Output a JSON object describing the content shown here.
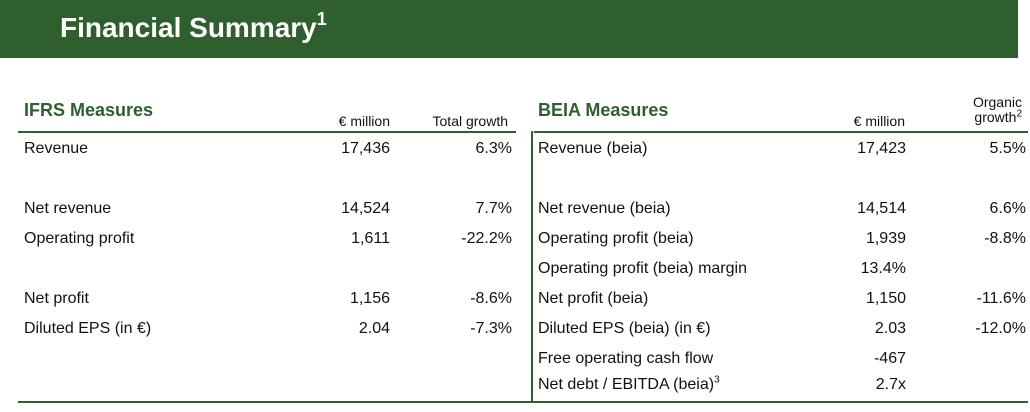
{
  "banner": {
    "title": "Financial Summary",
    "footnote": "1"
  },
  "ifrs": {
    "title": "IFRS Measures",
    "col_value": "€ million",
    "col_growth": "Total growth",
    "rows": [
      {
        "label": "Revenue",
        "value": "17,436",
        "growth": "6.3%"
      },
      {
        "label": "",
        "value": "",
        "growth": ""
      },
      {
        "label": "Net revenue",
        "value": "14,524",
        "growth": "7.7%"
      },
      {
        "label": "Operating profit",
        "value": "1,611",
        "growth": "-22.2%"
      },
      {
        "label": "",
        "value": "",
        "growth": ""
      },
      {
        "label": "Net profit",
        "value": "1,156",
        "growth": "-8.6%"
      },
      {
        "label": "Diluted EPS (in €)",
        "value": "2.04",
        "growth": "-7.3%"
      }
    ]
  },
  "beia": {
    "title": "BEIA Measures",
    "col_value": "€ million",
    "col_growth_line1": "Organic",
    "col_growth_line2": "growth",
    "col_growth_footnote": "2",
    "rows": [
      {
        "label": "Revenue (beia)",
        "value": "17,423",
        "growth": "5.5%"
      },
      {
        "label": "",
        "value": "",
        "growth": ""
      },
      {
        "label": "Net revenue (beia)",
        "value": "14,514",
        "growth": "6.6%"
      },
      {
        "label": "Operating profit (beia)",
        "value": "1,939",
        "growth": "-8.8%"
      },
      {
        "label": "Operating profit (beia) margin",
        "value": "13.4%",
        "growth": ""
      },
      {
        "label": "Net profit (beia)",
        "value": "1,150",
        "growth": "-11.6%"
      },
      {
        "label": "Diluted EPS (beia) (in €)",
        "value": "2.03",
        "growth": "-12.0%"
      },
      {
        "label": "Free operating cash flow",
        "value": "-467",
        "growth": ""
      },
      {
        "label": "Net debt / EBITDA (beia)",
        "footnote": "3",
        "value": "2.7x",
        "growth": ""
      }
    ]
  },
  "colors": {
    "brand_green": "#2f5f2f"
  }
}
